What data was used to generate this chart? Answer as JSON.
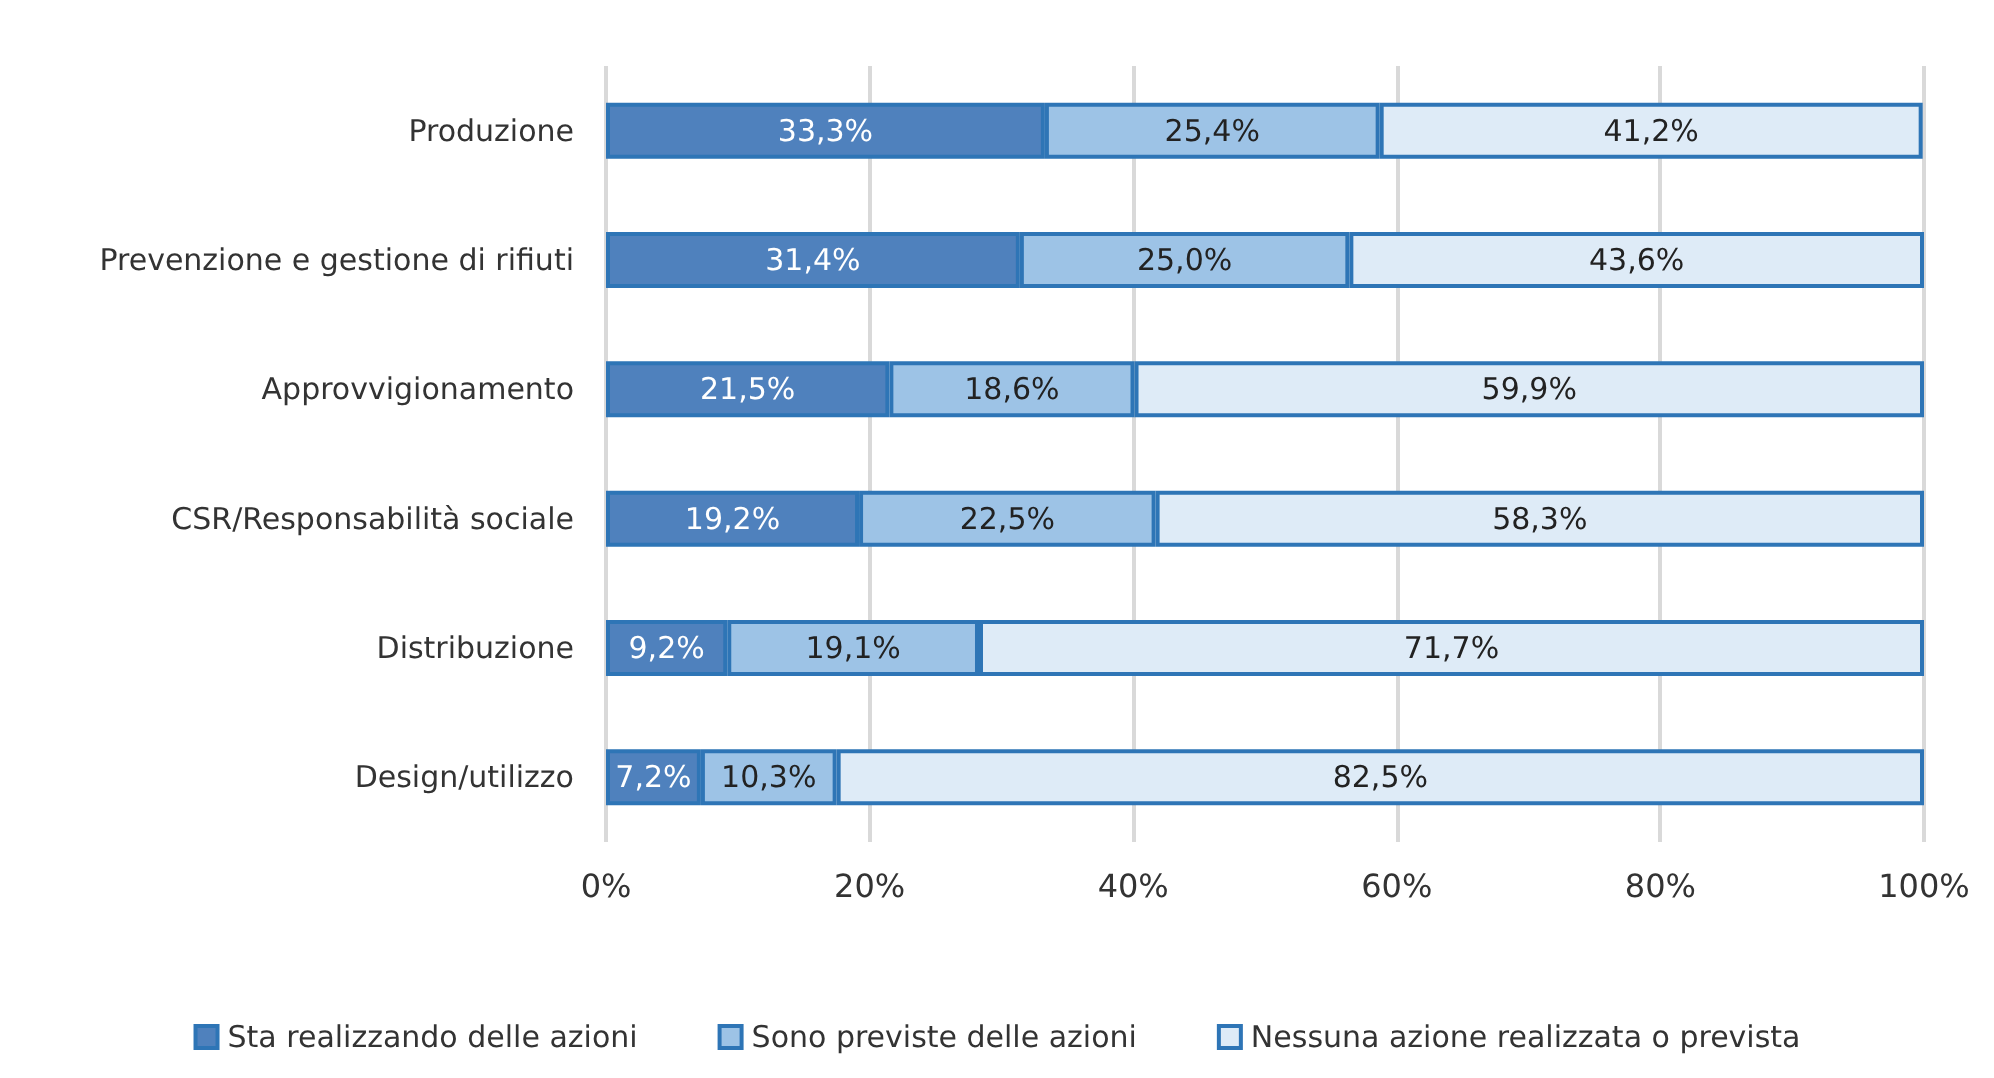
{
  "chart_data": {
    "type": "bar",
    "orientation": "horizontal",
    "stacked": true,
    "categories": [
      "Produzione",
      "Prevenzione e gestione di rifiuti",
      "Approvvigionamento",
      "CSR/Responsabilità sociale",
      "Distribuzione",
      "Design/utilizzo"
    ],
    "series": [
      {
        "name": "Sta realizzando delle azioni",
        "color": "#4f81bd",
        "values": [
          33.3,
          31.4,
          21.5,
          19.2,
          9.2,
          7.2
        ],
        "value_labels": [
          "33,3%",
          "31,4%",
          "21,5%",
          "19,2%",
          "9,2%",
          "7,2%"
        ]
      },
      {
        "name": "Sono previste delle azioni",
        "color": "#9dc3e6",
        "values": [
          25.4,
          25.0,
          18.6,
          22.5,
          19.1,
          10.3
        ],
        "value_labels": [
          "25,4%",
          "25,0%",
          "18,6%",
          "22,5%",
          "19,1%",
          "10,3%"
        ]
      },
      {
        "name": "Nessuna azione realizzata o prevista",
        "color": "#deebf7",
        "values": [
          41.2,
          43.6,
          59.9,
          58.3,
          71.7,
          82.5
        ],
        "value_labels": [
          "41,2%",
          "43,6%",
          "59,9%",
          "58,3%",
          "71,7%",
          "82,5%"
        ]
      }
    ],
    "xlim": [
      0,
      100
    ],
    "xticks": [
      {
        "value": 0,
        "label": "0%"
      },
      {
        "value": 20,
        "label": "20%"
      },
      {
        "value": 40,
        "label": "40%"
      },
      {
        "value": 60,
        "label": "60%"
      },
      {
        "value": 80,
        "label": "80%"
      },
      {
        "value": 100,
        "label": "100%"
      }
    ],
    "grid": "x",
    "legend": "bottom"
  }
}
